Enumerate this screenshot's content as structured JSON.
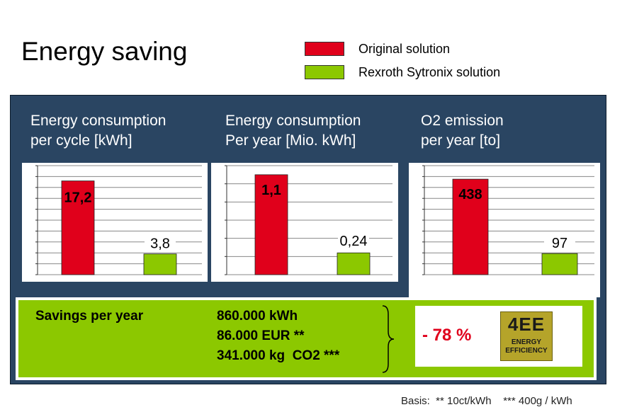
{
  "page": {
    "title": "Energy saving",
    "basis": "Basis:  ** 10ct/kWh    *** 400g / kWh"
  },
  "legend": [
    {
      "label": "Original solution",
      "color": "#e0001b"
    },
    {
      "label": "Rexroth Sytronix solution",
      "color": "#8cc800"
    }
  ],
  "chart_data": [
    {
      "type": "bar",
      "title": "Energy consumption\nper cycle [kWh]",
      "categories": [
        "Original solution",
        "Rexroth Sytronix solution"
      ],
      "values": [
        17.2,
        3.8
      ],
      "value_labels": [
        "17,2",
        "3,8"
      ],
      "colors": [
        "#e0001b",
        "#8cc800"
      ],
      "ylim": [
        0,
        20
      ],
      "grid": true
    },
    {
      "type": "bar",
      "title": "Energy consumption\nPer year [Mio. kWh]",
      "categories": [
        "Original solution",
        "Rexroth Sytronix solution"
      ],
      "values": [
        1.1,
        0.24
      ],
      "value_labels": [
        "1,1",
        "0,24"
      ],
      "colors": [
        "#e0001b",
        "#8cc800"
      ],
      "ylim": [
        0,
        1.2
      ],
      "grid": true
    },
    {
      "type": "bar",
      "title": "O2 emission\nper year [to]",
      "categories": [
        "Original solution",
        "Rexroth Sytronix solution"
      ],
      "values": [
        438,
        97
      ],
      "value_labels": [
        "438",
        "97"
      ],
      "colors": [
        "#e0001b",
        "#8cc800"
      ],
      "ylim": [
        0,
        500
      ],
      "grid": true
    }
  ],
  "savings": {
    "label": "Savings per year",
    "lines": [
      "860.000 kWh",
      "86.000 EUR **",
      "341.000 kg  CO2 ***"
    ],
    "percent": "- 78 %",
    "badge_big": "4EE",
    "badge_small": "ENERGY\nEFFICIENCY"
  },
  "colors": {
    "panel": "#2a4562",
    "original": "#e0001b",
    "sytronix": "#8cc800",
    "badge": "#b5a42a"
  }
}
